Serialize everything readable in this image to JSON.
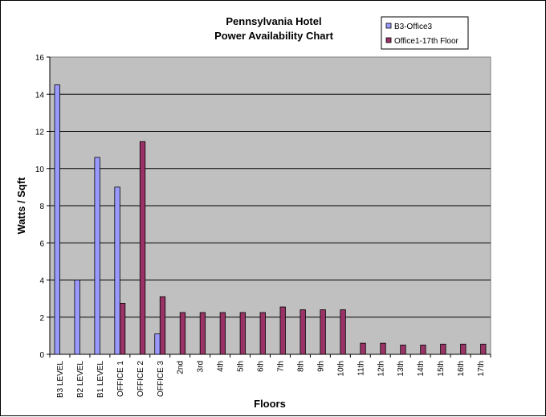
{
  "chart_data": {
    "type": "bar",
    "title": "Pennsylvania Hotel",
    "subtitle": "Power Availability Chart",
    "xlabel": "Floors",
    "ylabel": "Watts / Sqft",
    "ylim": [
      0,
      16
    ],
    "yticks": [
      0,
      2,
      4,
      6,
      8,
      10,
      12,
      14,
      16
    ],
    "grid": true,
    "legend_position": "top-right",
    "categories": [
      "B3 LEVEL",
      "B2 LEVEL",
      "B1 LEVEL",
      "OFFICE 1",
      "OFFICE 2",
      "OFFICE 3",
      "2nd",
      "3rd",
      "4th",
      "5th",
      "6th",
      "7th",
      "8th",
      "9th",
      "10th",
      "11th",
      "12th",
      "13th",
      "14th",
      "15th",
      "16th",
      "17th"
    ],
    "series": [
      {
        "name": "B3-Office3",
        "color": "#9999ff",
        "values": [
          14.5,
          4.0,
          10.6,
          9.0,
          null,
          1.1,
          null,
          null,
          null,
          null,
          null,
          null,
          null,
          null,
          null,
          null,
          null,
          null,
          null,
          null,
          null,
          null
        ]
      },
      {
        "name": "Office1-17th Floor",
        "color": "#993366",
        "values": [
          null,
          null,
          null,
          2.75,
          11.45,
          3.1,
          2.25,
          2.25,
          2.25,
          2.25,
          2.25,
          2.55,
          2.4,
          2.4,
          2.4,
          0.6,
          0.6,
          0.5,
          0.5,
          0.55,
          0.55,
          0.55
        ]
      }
    ],
    "plot_background": "#c0c0c0"
  }
}
